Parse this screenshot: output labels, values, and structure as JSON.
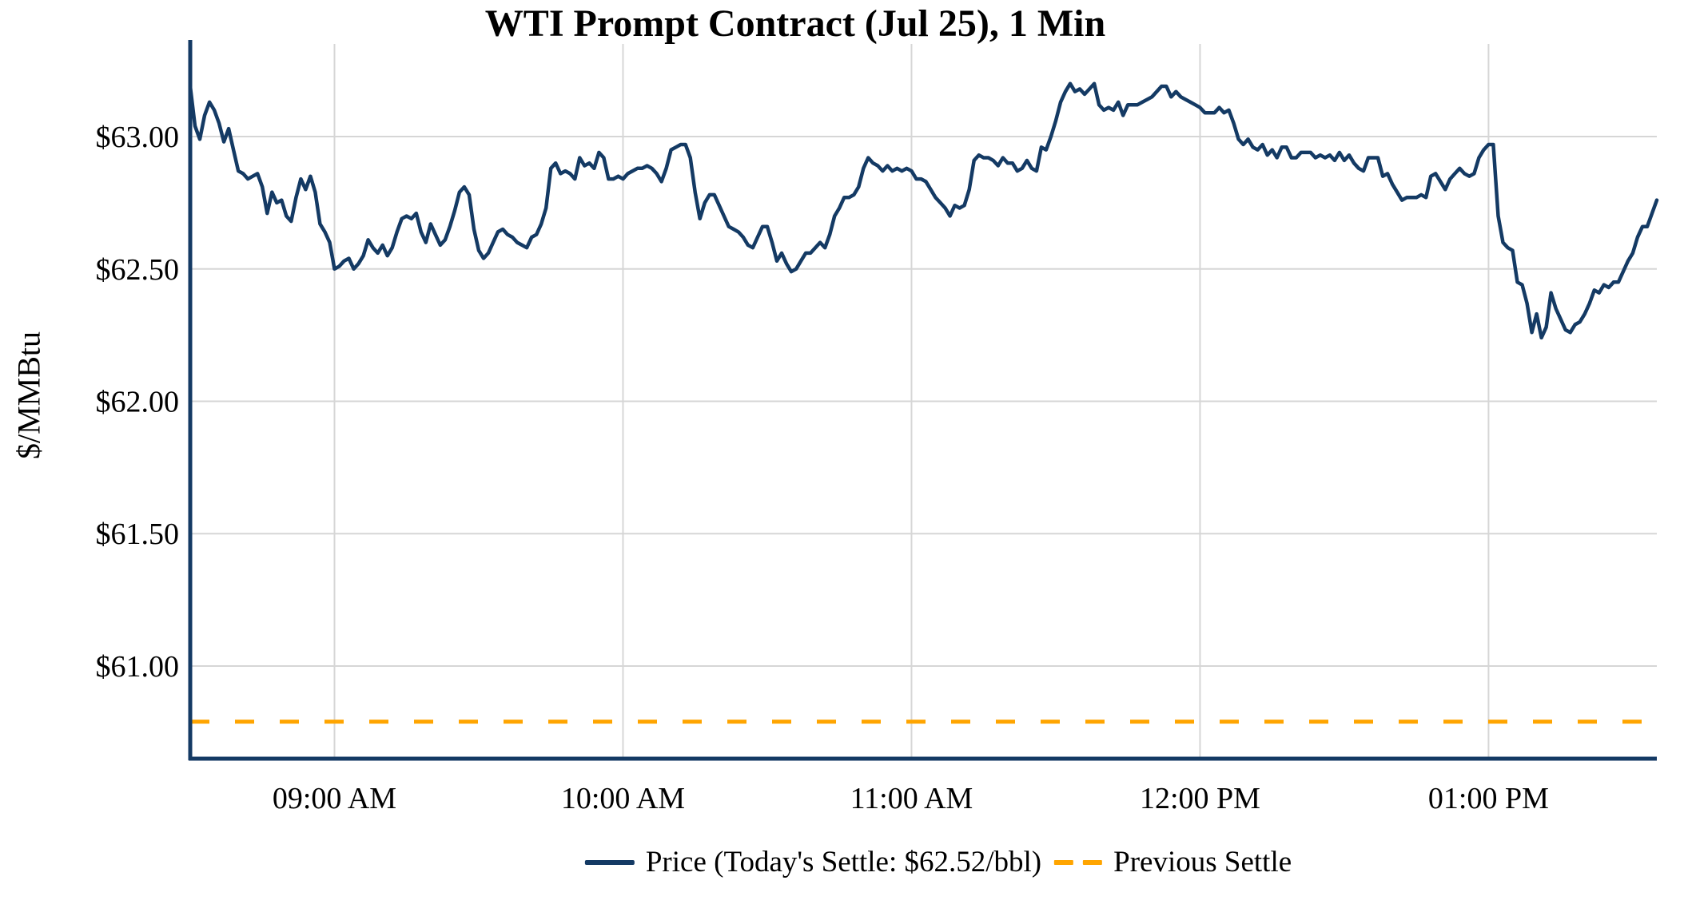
{
  "title": "WTI Prompt Contract (Jul 25), 1 Min",
  "y_axis": {
    "label": "$/MMBtu",
    "tick_labels": [
      "$61.00",
      "$61.50",
      "$62.00",
      "$62.50",
      "$63.00"
    ],
    "tick_values": [
      61.0,
      61.5,
      62.0,
      62.5,
      63.0
    ],
    "range": [
      60.65,
      63.35
    ]
  },
  "x_axis": {
    "tick_labels": [
      "09:00 AM",
      "10:00 AM",
      "11:00 AM",
      "12:00 PM",
      "01:00 PM"
    ],
    "tick_minutes": [
      540,
      600,
      660,
      720,
      780
    ],
    "range_minutes": [
      510,
      815
    ]
  },
  "legend": {
    "price_label": "Price (Today's Settle: $62.52/bbl)",
    "previous_settle_label": "Previous Settle"
  },
  "colors": {
    "price_line": "#143A64",
    "previous_settle": "#FFA500",
    "grid": "#D6D6D6",
    "axis": "#143A64",
    "text": "#000000",
    "background": "#FFFFFF"
  },
  "chart_data": {
    "type": "line",
    "title": "WTI Prompt Contract (Jul 25), 1 Min",
    "xlabel": "",
    "ylabel": "$/MMBtu",
    "grid": true,
    "legend_position": "bottom-center",
    "ylim": [
      60.65,
      63.35
    ],
    "x_start_time": "08:30",
    "x_start_minutes": 510,
    "x_end_time": "13:35",
    "interval_minutes": 1,
    "today_settle_usd_bbl": 62.52,
    "previous_settle": 60.79,
    "series": [
      {
        "name": "Price",
        "style": "solid",
        "values": [
          63.19,
          63.04,
          62.99,
          63.08,
          63.13,
          63.1,
          63.05,
          62.98,
          63.03,
          62.95,
          62.87,
          62.86,
          62.84,
          62.85,
          62.86,
          62.81,
          62.71,
          62.79,
          62.75,
          62.76,
          62.7,
          62.68,
          62.77,
          62.84,
          62.8,
          62.85,
          62.79,
          62.67,
          62.64,
          62.6,
          62.5,
          62.51,
          62.53,
          62.54,
          62.5,
          62.52,
          62.55,
          62.61,
          62.58,
          62.56,
          62.59,
          62.55,
          62.58,
          62.64,
          62.69,
          62.7,
          62.69,
          62.71,
          62.64,
          62.6,
          62.67,
          62.63,
          62.59,
          62.61,
          62.66,
          62.72,
          62.79,
          62.81,
          62.78,
          62.65,
          62.57,
          62.54,
          62.56,
          62.6,
          62.64,
          62.65,
          62.63,
          62.62,
          62.6,
          62.59,
          62.58,
          62.62,
          62.63,
          62.67,
          62.73,
          62.88,
          62.9,
          62.86,
          62.87,
          62.86,
          62.84,
          62.92,
          62.89,
          62.9,
          62.88,
          62.94,
          62.92,
          62.84,
          62.84,
          62.85,
          62.84,
          62.86,
          62.87,
          62.88,
          62.88,
          62.89,
          62.88,
          62.86,
          62.83,
          62.88,
          62.95,
          62.96,
          62.97,
          62.97,
          62.92,
          62.79,
          62.69,
          62.75,
          62.78,
          62.78,
          62.74,
          62.7,
          62.66,
          62.65,
          62.64,
          62.62,
          62.59,
          62.58,
          62.62,
          62.66,
          62.66,
          62.6,
          62.53,
          62.56,
          62.52,
          62.49,
          62.5,
          62.53,
          62.56,
          62.56,
          62.58,
          62.6,
          62.58,
          62.63,
          62.7,
          62.73,
          62.77,
          62.77,
          62.78,
          62.81,
          62.88,
          62.92,
          62.9,
          62.89,
          62.87,
          62.89,
          62.87,
          62.88,
          62.87,
          62.88,
          62.87,
          62.84,
          62.84,
          62.83,
          62.8,
          62.77,
          62.75,
          62.73,
          62.7,
          62.74,
          62.73,
          62.74,
          62.8,
          62.91,
          62.93,
          62.92,
          62.92,
          62.91,
          62.89,
          62.92,
          62.9,
          62.9,
          62.87,
          62.88,
          62.91,
          62.88,
          62.87,
          62.96,
          62.95,
          63.0,
          63.06,
          63.13,
          63.17,
          63.2,
          63.17,
          63.18,
          63.16,
          63.18,
          63.2,
          63.12,
          63.1,
          63.11,
          63.1,
          63.13,
          63.08,
          63.12,
          63.12,
          63.12,
          63.13,
          63.14,
          63.15,
          63.17,
          63.19,
          63.19,
          63.15,
          63.17,
          63.15,
          63.14,
          63.13,
          63.12,
          63.11,
          63.09,
          63.09,
          63.09,
          63.11,
          63.09,
          63.1,
          63.05,
          62.99,
          62.97,
          62.99,
          62.96,
          62.95,
          62.97,
          62.93,
          62.95,
          62.92,
          62.96,
          62.96,
          62.92,
          62.92,
          62.94,
          62.94,
          62.94,
          62.92,
          62.93,
          62.92,
          62.93,
          62.91,
          62.94,
          62.91,
          62.93,
          62.9,
          62.88,
          62.87,
          62.92,
          62.92,
          62.92,
          62.85,
          62.86,
          62.82,
          62.79,
          62.76,
          62.77,
          62.77,
          62.77,
          62.78,
          62.77,
          62.85,
          62.86,
          62.83,
          62.8,
          62.84,
          62.86,
          62.88,
          62.86,
          62.85,
          62.86,
          62.92,
          62.95,
          62.97,
          62.97,
          62.7,
          62.6,
          62.58,
          62.57,
          62.45,
          62.44,
          62.37,
          62.26,
          62.33,
          62.24,
          62.28,
          62.41,
          62.35,
          62.31,
          62.27,
          62.26,
          62.29,
          62.3,
          62.33,
          62.37,
          62.42,
          62.41,
          62.44,
          62.43,
          62.45,
          62.45,
          62.49,
          62.53,
          62.56,
          62.62,
          62.66,
          62.66,
          62.71,
          62.76
        ]
      },
      {
        "name": "Previous Settle",
        "type": "hline",
        "value": 60.79,
        "style": "dashed"
      }
    ]
  }
}
